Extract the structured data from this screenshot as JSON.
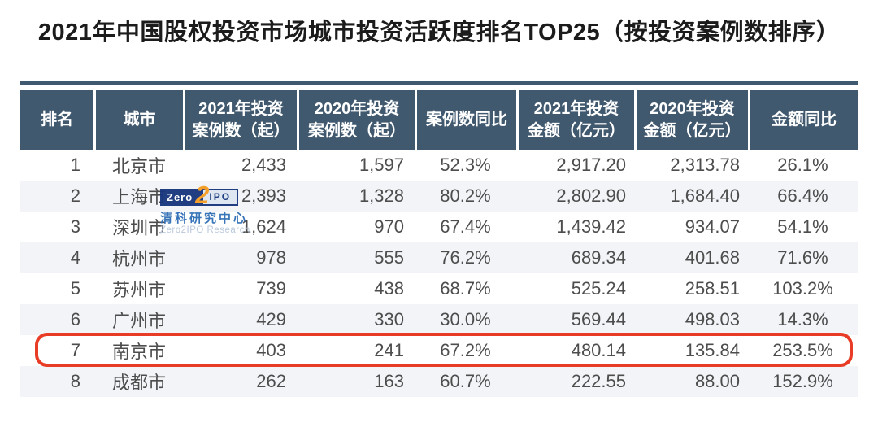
{
  "title": "2021年中国股权投资市场城市投资活跃度排名TOP25（按投资案例数排序）",
  "watermark": {
    "logo_zero": "Zero",
    "logo_2": "2",
    "logo_ipo": "IPO",
    "name_cn": "清科研究中心",
    "name_en": "Zero2IPO Research"
  },
  "table": {
    "columns": [
      {
        "label": "排名"
      },
      {
        "label": "城市"
      },
      {
        "label": "2021年投资\n案例数（起）"
      },
      {
        "label": "2020年投资\n案例数（起）"
      },
      {
        "label": "案例数同比"
      },
      {
        "label": "2021年投资\n金额（亿元）"
      },
      {
        "label": "2020年投资\n金额（亿元）"
      },
      {
        "label": "金额同比"
      }
    ],
    "rows": [
      {
        "rank": "1",
        "city": "北京市",
        "cases_2021": "2,433",
        "cases_2020": "1,597",
        "cases_yoy": "52.3%",
        "amount_2021": "2,917.20",
        "amount_2020": "2,313.78",
        "amount_yoy": "26.1%",
        "highlighted": false
      },
      {
        "rank": "2",
        "city": "上海市",
        "cases_2021": "2,393",
        "cases_2020": "1,328",
        "cases_yoy": "80.2%",
        "amount_2021": "2,802.90",
        "amount_2020": "1,684.40",
        "amount_yoy": "66.4%",
        "highlighted": false
      },
      {
        "rank": "3",
        "city": "深圳市",
        "cases_2021": "1,624",
        "cases_2020": "970",
        "cases_yoy": "67.4%",
        "amount_2021": "1,439.42",
        "amount_2020": "934.07",
        "amount_yoy": "54.1%",
        "highlighted": false
      },
      {
        "rank": "4",
        "city": "杭州市",
        "cases_2021": "978",
        "cases_2020": "555",
        "cases_yoy": "76.2%",
        "amount_2021": "689.34",
        "amount_2020": "401.68",
        "amount_yoy": "71.6%",
        "highlighted": false
      },
      {
        "rank": "5",
        "city": "苏州市",
        "cases_2021": "739",
        "cases_2020": "438",
        "cases_yoy": "68.7%",
        "amount_2021": "525.24",
        "amount_2020": "258.51",
        "amount_yoy": "103.2%",
        "highlighted": false
      },
      {
        "rank": "6",
        "city": "广州市",
        "cases_2021": "429",
        "cases_2020": "330",
        "cases_yoy": "30.0%",
        "amount_2021": "569.44",
        "amount_2020": "498.03",
        "amount_yoy": "14.3%",
        "highlighted": false
      },
      {
        "rank": "7",
        "city": "南京市",
        "cases_2021": "403",
        "cases_2020": "241",
        "cases_yoy": "67.2%",
        "amount_2021": "480.14",
        "amount_2020": "135.84",
        "amount_yoy": "253.5%",
        "highlighted": true
      },
      {
        "rank": "8",
        "city": "成都市",
        "cases_2021": "262",
        "cases_2020": "163",
        "cases_yoy": "60.7%",
        "amount_2021": "222.55",
        "amount_2020": "88.00",
        "amount_yoy": "152.9%",
        "highlighted": false
      }
    ]
  },
  "chart_data": {
    "type": "table",
    "title": "2021年中国股权投资市场城市投资活跃度排名TOP25（按投资案例数排序）",
    "columns": [
      "排名",
      "城市",
      "2021年投资案例数（起）",
      "2020年投资案例数（起）",
      "案例数同比",
      "2021年投资金额（亿元）",
      "2020年投资金额（亿元）",
      "金额同比"
    ],
    "rows": [
      [
        "1",
        "北京市",
        "2,433",
        "1,597",
        "52.3%",
        "2,917.20",
        "2,313.78",
        "26.1%"
      ],
      [
        "2",
        "上海市",
        "2,393",
        "1,328",
        "80.2%",
        "2,802.90",
        "1,684.40",
        "66.4%"
      ],
      [
        "3",
        "深圳市",
        "1,624",
        "970",
        "67.4%",
        "1,439.42",
        "934.07",
        "54.1%"
      ],
      [
        "4",
        "杭州市",
        "978",
        "555",
        "76.2%",
        "689.34",
        "401.68",
        "71.6%"
      ],
      [
        "5",
        "苏州市",
        "739",
        "438",
        "68.7%",
        "525.24",
        "258.51",
        "103.2%"
      ],
      [
        "6",
        "广州市",
        "429",
        "330",
        "30.0%",
        "569.44",
        "498.03",
        "14.3%"
      ],
      [
        "7",
        "南京市",
        "403",
        "241",
        "67.2%",
        "480.14",
        "135.84",
        "253.5%"
      ],
      [
        "8",
        "成都市",
        "262",
        "163",
        "60.7%",
        "222.55",
        "88.00",
        "152.9%"
      ]
    ],
    "highlighted_row": "7（南京市，红框标注）",
    "visible_rows_note": "TOP25中仅前8行在截图中可见"
  },
  "colors": {
    "header_bg": "#41596f",
    "header_text": "#ffffff",
    "row_alt_bg": "#f2f4f7",
    "body_text": "#4d4d4d",
    "title_text": "#1c1c1c",
    "highlight_border": "#e83c26",
    "logo_navy": "#16357c",
    "logo_orange": "#f59b1e",
    "logo_panel": "#dde7f1",
    "brand_blue": "#2e6db4",
    "brand_light": "#b7c6da"
  }
}
